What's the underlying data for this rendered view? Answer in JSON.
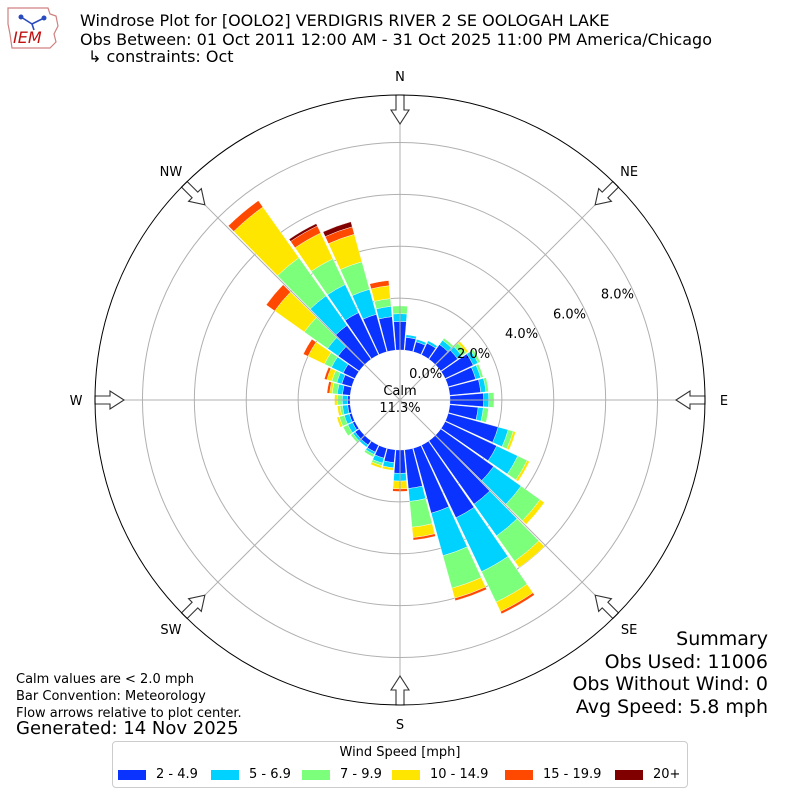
{
  "header": {
    "logo_text": "IEM",
    "title": "Windrose Plot for [OOLO2] VERDIGRIS RIVER 2 SE OOLOGAH LAKE",
    "obs_between": "Obs Between: 01 Oct 2011 12:00 AM - 31 Oct 2025 11:00 PM America/Chicago",
    "constraints": "↳ constraints: Oct"
  },
  "notes": {
    "calm_note": "Calm values are < 2.0 mph",
    "bar_convention": "Bar Convention: Meteorology",
    "flow_arrows": "Flow arrows relative to plot center.",
    "generated": "Generated: 14 Nov 2025"
  },
  "summary": {
    "title": "Summary",
    "obs_used": "Obs Used: 11006",
    "obs_without_wind": "Obs Without Wind: 0",
    "avg_speed": "Avg Speed: 5.8 mph"
  },
  "legend": {
    "title": "Wind Speed [mph]",
    "items": [
      {
        "label": "2 - 4.9",
        "color": "#0a33ff"
      },
      {
        "label": "5 - 6.9",
        "color": "#00d2ff"
      },
      {
        "label": "7 - 9.9",
        "color": "#7cff7a"
      },
      {
        "label": "10 - 14.9",
        "color": "#ffe600"
      },
      {
        "label": "15 - 19.9",
        "color": "#ff4800"
      },
      {
        "label": "20+",
        "color": "#800000"
      }
    ]
  },
  "chart_data": {
    "type": "windrose",
    "calm": {
      "label": "Calm",
      "value": "11.3%"
    },
    "compass_labels": [
      "N",
      "NE",
      "E",
      "SE",
      "S",
      "SW",
      "W",
      "NW"
    ],
    "radial_ticks": [
      "0.0%",
      "2.0%",
      "4.0%",
      "6.0%",
      "8.0%"
    ],
    "radial_tick_values": [
      0,
      2,
      4,
      6,
      8
    ],
    "rmax": 9.83,
    "bin_labels": [
      "2 - 4.9",
      "5 - 6.9",
      "7 - 9.9",
      "10 - 14.9",
      "15 - 19.9",
      "20+"
    ],
    "colors": [
      "#0a33ff",
      "#00d2ff",
      "#7cff7a",
      "#ffe600",
      "#ff4800",
      "#800000"
    ],
    "directions_deg": [
      0,
      10,
      20,
      30,
      40,
      50,
      60,
      70,
      80,
      90,
      100,
      110,
      120,
      130,
      140,
      150,
      160,
      170,
      180,
      190,
      200,
      210,
      220,
      230,
      240,
      250,
      260,
      270,
      280,
      290,
      300,
      310,
      320,
      330,
      340,
      350
    ],
    "cumulative_percent": [
      [
        1.1,
        1.4,
        1.7,
        1.7,
        1.7,
        1.7
      ],
      [
        0.5,
        0.6,
        0.6,
        0.6,
        0.6,
        0.6
      ],
      [
        0.4,
        0.5,
        0.5,
        0.5,
        0.5,
        0.5
      ],
      [
        0.5,
        0.6,
        0.6,
        0.6,
        0.6,
        0.6
      ],
      [
        0.7,
        0.9,
        1.0,
        1.0,
        1.0,
        1.0
      ],
      [
        0.8,
        1.0,
        1.2,
        1.3,
        1.3,
        1.3
      ],
      [
        1.2,
        1.4,
        1.5,
        1.5,
        1.5,
        1.5
      ],
      [
        1.1,
        1.3,
        1.4,
        1.4,
        1.4,
        1.4
      ],
      [
        1.2,
        1.4,
        1.5,
        1.5,
        1.5,
        1.5
      ],
      [
        1.3,
        1.5,
        1.7,
        1.7,
        1.7,
        1.7
      ],
      [
        1.1,
        1.3,
        1.5,
        1.5,
        1.5,
        1.5
      ],
      [
        2.0,
        2.4,
        2.6,
        2.7,
        2.7,
        2.7
      ],
      [
        2.2,
        3.1,
        3.5,
        3.6,
        3.6,
        3.6
      ],
      [
        2.5,
        3.8,
        4.7,
        4.9,
        4.9,
        4.9
      ],
      [
        3.0,
        4.5,
        5.7,
        6.0,
        6.0,
        6.0
      ],
      [
        3.1,
        5.4,
        6.7,
        7.1,
        7.2,
        7.2
      ],
      [
        2.6,
        4.3,
        5.6,
        6.0,
        6.1,
        6.1
      ],
      [
        1.5,
        2.0,
        3.0,
        3.4,
        3.5,
        3.5
      ],
      [
        0.9,
        1.2,
        1.2,
        1.5,
        1.6,
        1.6
      ],
      [
        0.5,
        0.7,
        0.7,
        0.8,
        0.8,
        0.8
      ],
      [
        0.4,
        0.6,
        0.7,
        0.8,
        0.8,
        0.8
      ],
      [
        0.3,
        0.4,
        0.5,
        0.5,
        0.5,
        0.5
      ],
      [
        0.2,
        0.3,
        0.3,
        0.3,
        0.3,
        0.3
      ],
      [
        0.2,
        0.3,
        0.4,
        0.4,
        0.4,
        0.4
      ],
      [
        0.1,
        0.3,
        0.5,
        0.5,
        0.5,
        0.5
      ],
      [
        0.1,
        0.3,
        0.5,
        0.6,
        0.6,
        0.6
      ],
      [
        0.1,
        0.3,
        0.4,
        0.5,
        0.5,
        0.5
      ],
      [
        0.1,
        0.3,
        0.5,
        0.6,
        0.6,
        0.6
      ],
      [
        0.3,
        0.5,
        0.7,
        0.8,
        0.9,
        0.9
      ],
      [
        0.4,
        0.6,
        0.8,
        1.0,
        1.1,
        1.1
      ],
      [
        0.5,
        1.0,
        1.3,
        2.0,
        2.2,
        2.2
      ],
      [
        1.0,
        1.5,
        2.6,
        4.0,
        4.4,
        4.4
      ],
      [
        1.6,
        3.0,
        4.8,
        7.2,
        7.5,
        7.5
      ],
      [
        1.8,
        3.0,
        4.1,
        5.2,
        5.5,
        5.6
      ],
      [
        1.5,
        2.5,
        3.6,
        4.7,
        5.0,
        5.2
      ],
      [
        1.3,
        1.7,
        2.0,
        2.5,
        2.7,
        2.7
      ]
    ]
  }
}
